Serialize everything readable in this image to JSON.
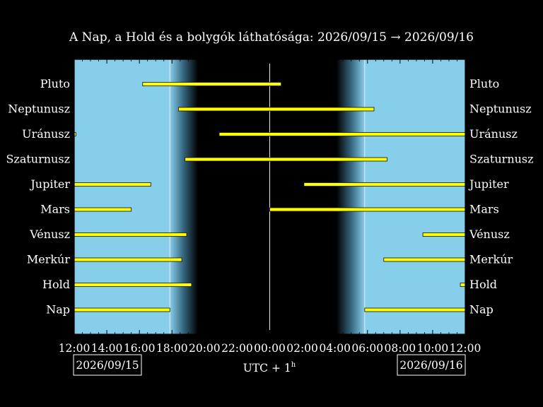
{
  "chart_data": {
    "type": "gantt",
    "title": "A Nap, a Hold és a bolygók láthatósága: 2026/09/15 → 2026/09/16",
    "xlabel": "UTC + 1",
    "xlabel_sup": "h",
    "date_left": "2026/09/15",
    "date_right": "2026/09/16",
    "x_range_hours": [
      12,
      36
    ],
    "x_tick_labels": [
      "12:00",
      "14:00",
      "16:00",
      "18:00",
      "20:00",
      "22:00",
      "00:00",
      "02:00",
      "04:00",
      "06:00",
      "08:00",
      "10:00",
      "12:00"
    ],
    "sunset_hours": 17.87,
    "sunrise_hours": 29.83,
    "twilight_dark_end_hours": 19.6,
    "twilight_dark_start_hours": 28.1,
    "colors": {
      "day": "#87ceeb",
      "night": "#000000",
      "bar": "#ffff00"
    },
    "rows": [
      {
        "name": "Pluto",
        "segments": [
          [
            16.2,
            24.7
          ]
        ]
      },
      {
        "name": "Neptunusz",
        "segments": [
          [
            18.4,
            30.4
          ]
        ]
      },
      {
        "name": "Uránusz",
        "segments": [
          [
            12.0,
            12.1
          ],
          [
            20.9,
            36.0
          ]
        ]
      },
      {
        "name": "Szaturnusz",
        "segments": [
          [
            18.8,
            31.2
          ]
        ]
      },
      {
        "name": "Jupiter",
        "segments": [
          [
            12.0,
            16.7
          ],
          [
            26.1,
            36.0
          ]
        ]
      },
      {
        "name": "Mars",
        "segments": [
          [
            12.0,
            15.5
          ],
          [
            24.0,
            36.0
          ]
        ]
      },
      {
        "name": "Vénusz",
        "segments": [
          [
            12.0,
            18.9
          ],
          [
            33.4,
            36.0
          ]
        ]
      },
      {
        "name": "Merkúr",
        "segments": [
          [
            12.0,
            18.6
          ],
          [
            31.0,
            36.0
          ]
        ]
      },
      {
        "name": "Hold",
        "segments": [
          [
            12.0,
            19.2
          ],
          [
            35.7,
            36.0
          ]
        ]
      },
      {
        "name": "Nap",
        "segments": [
          [
            12.0,
            17.87
          ],
          [
            29.83,
            36.0
          ]
        ]
      }
    ]
  }
}
